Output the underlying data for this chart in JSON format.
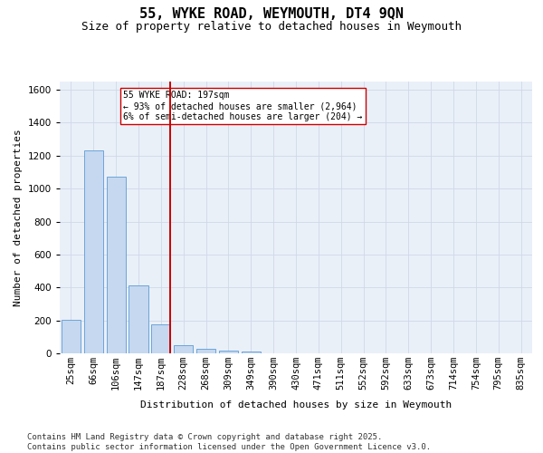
{
  "title": "55, WYKE ROAD, WEYMOUTH, DT4 9QN",
  "subtitle": "Size of property relative to detached houses in Weymouth",
  "xlabel": "Distribution of detached houses by size in Weymouth",
  "ylabel": "Number of detached properties",
  "categories": [
    "25sqm",
    "66sqm",
    "106sqm",
    "147sqm",
    "187sqm",
    "228sqm",
    "268sqm",
    "309sqm",
    "349sqm",
    "390sqm",
    "430sqm",
    "471sqm",
    "511sqm",
    "552sqm",
    "592sqm",
    "633sqm",
    "673sqm",
    "714sqm",
    "754sqm",
    "795sqm",
    "835sqm"
  ],
  "values": [
    205,
    1230,
    1075,
    415,
    175,
    52,
    30,
    18,
    10,
    0,
    0,
    0,
    0,
    0,
    0,
    0,
    0,
    0,
    0,
    0,
    0
  ],
  "bar_color": "#c5d8f0",
  "bar_edge_color": "#5b9bd5",
  "vline_index": 4,
  "vline_color": "#cc0000",
  "annotation_text": "55 WYKE ROAD: 197sqm\n← 93% of detached houses are smaller (2,964)\n6% of semi-detached houses are larger (204) →",
  "annotation_box_color": "#ffffff",
  "annotation_box_edge": "#cc0000",
  "ylim": [
    0,
    1650
  ],
  "yticks": [
    0,
    200,
    400,
    600,
    800,
    1000,
    1200,
    1400,
    1600
  ],
  "grid_color": "#d0d8e8",
  "bg_color": "#eaf0f8",
  "footer": "Contains HM Land Registry data © Crown copyright and database right 2025.\nContains public sector information licensed under the Open Government Licence v3.0.",
  "title_fontsize": 11,
  "subtitle_fontsize": 9,
  "label_fontsize": 8,
  "tick_fontsize": 7.5,
  "footer_fontsize": 6.5
}
